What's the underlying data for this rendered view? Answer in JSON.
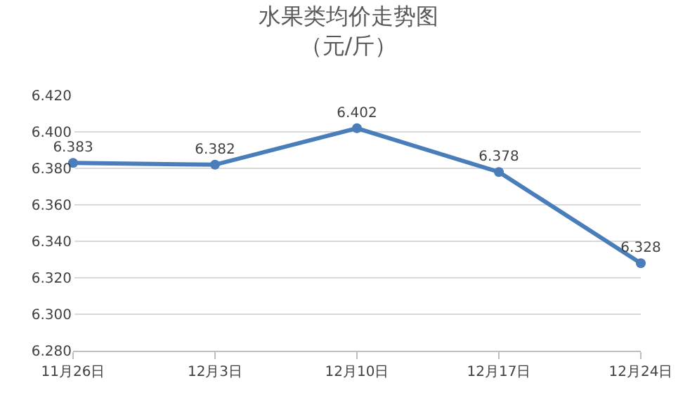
{
  "chart_data": {
    "type": "line",
    "title": "水果类均价走势图",
    "subtitle": "（元/斤）",
    "categories": [
      "11月26日",
      "12月3日",
      "12月10日",
      "12月17日",
      "12月24日"
    ],
    "series": [
      {
        "color": "#4a7ebb",
        "values": [
          6.383,
          6.382,
          6.402,
          6.378,
          6.328
        ],
        "value_labels": [
          "6.383",
          "6.382",
          "6.402",
          "6.378",
          "6.328"
        ]
      }
    ],
    "ylim": [
      6.28,
      6.42
    ],
    "yticks": [
      {
        "value": 6.28,
        "label": "6.280"
      },
      {
        "value": 6.3,
        "label": "6.300"
      },
      {
        "value": 6.32,
        "label": "6.320"
      },
      {
        "value": 6.34,
        "label": "6.340"
      },
      {
        "value": 6.36,
        "label": "6.360"
      },
      {
        "value": 6.38,
        "label": "6.380"
      },
      {
        "value": 6.4,
        "label": "6.400"
      },
      {
        "value": 6.42,
        "label": "6.420"
      }
    ],
    "grid": "y",
    "marker": "circle",
    "line_style": "solid"
  }
}
